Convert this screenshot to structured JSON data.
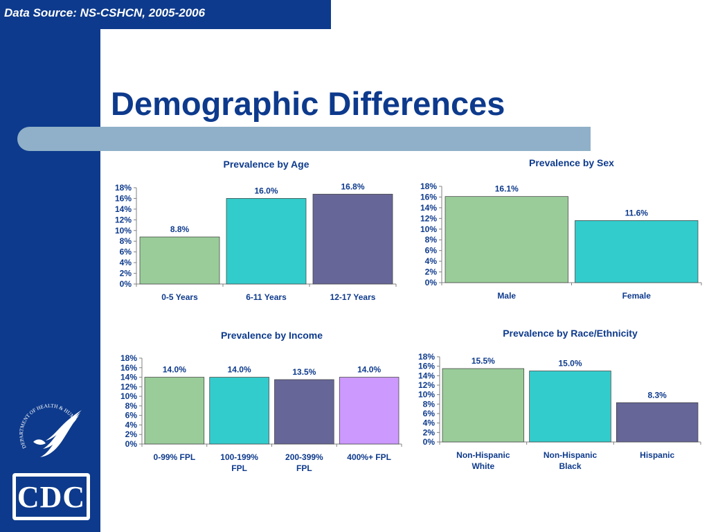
{
  "slide": {
    "source": "Data Source: NS-CSHCN, 2005-2006",
    "title": "Demographic Differences",
    "logo_text": "CDC",
    "seal_text": "DEPARTMENT OF HEALTH & HUMAN SERVICES · USA"
  },
  "chart_data": [
    {
      "type": "bar",
      "title": "Prevalence by Age",
      "categories": [
        [
          "0-5 Years"
        ],
        [
          "6-11 Years"
        ],
        [
          "12-17 Years"
        ]
      ],
      "values": [
        8.8,
        16.0,
        16.8
      ],
      "labels": [
        "8.8%",
        "16.0%",
        "16.8%"
      ],
      "colors": [
        "#99cc99",
        "#33cccc",
        "#666699"
      ],
      "yticks": [
        "0%",
        "2%",
        "4%",
        "6%",
        "8%",
        "10%",
        "12%",
        "14%",
        "16%",
        "18%"
      ],
      "ylim": [
        0,
        18
      ]
    },
    {
      "type": "bar",
      "title": "Prevalence by Sex",
      "categories": [
        [
          "Male"
        ],
        [
          "Female"
        ]
      ],
      "values": [
        16.1,
        11.6
      ],
      "labels": [
        "16.1%",
        "11.6%"
      ],
      "colors": [
        "#99cc99",
        "#33cccc"
      ],
      "yticks": [
        "0%",
        "2%",
        "4%",
        "6%",
        "8%",
        "10%",
        "12%",
        "14%",
        "16%",
        "18%"
      ],
      "ylim": [
        0,
        18
      ]
    },
    {
      "type": "bar",
      "title": "Prevalence by Income",
      "categories": [
        [
          "0-99% FPL"
        ],
        [
          "100-199%",
          "FPL"
        ],
        [
          "200-399%",
          "FPL"
        ],
        [
          "400%+ FPL"
        ]
      ],
      "values": [
        14.0,
        14.0,
        13.5,
        14.0
      ],
      "labels": [
        "14.0%",
        "14.0%",
        "13.5%",
        "14.0%"
      ],
      "colors": [
        "#99cc99",
        "#33cccc",
        "#666699",
        "#cc99ff"
      ],
      "yticks": [
        "0%",
        "2%",
        "4%",
        "6%",
        "8%",
        "10%",
        "12%",
        "14%",
        "16%",
        "18%"
      ],
      "ylim": [
        0,
        18
      ]
    },
    {
      "type": "bar",
      "title": "Prevalence by Race/Ethnicity",
      "categories": [
        [
          "Non-Hispanic",
          "White"
        ],
        [
          "Non-Hispanic",
          "Black"
        ],
        [
          "Hispanic"
        ]
      ],
      "values": [
        15.5,
        15.0,
        8.3
      ],
      "labels": [
        "15.5%",
        "15.0%",
        "8.3%"
      ],
      "colors": [
        "#99cc99",
        "#33cccc",
        "#666699"
      ],
      "yticks": [
        "0%",
        "2%",
        "4%",
        "6%",
        "8%",
        "10%",
        "12%",
        "14%",
        "16%",
        "18%"
      ],
      "ylim": [
        0,
        18
      ]
    }
  ]
}
